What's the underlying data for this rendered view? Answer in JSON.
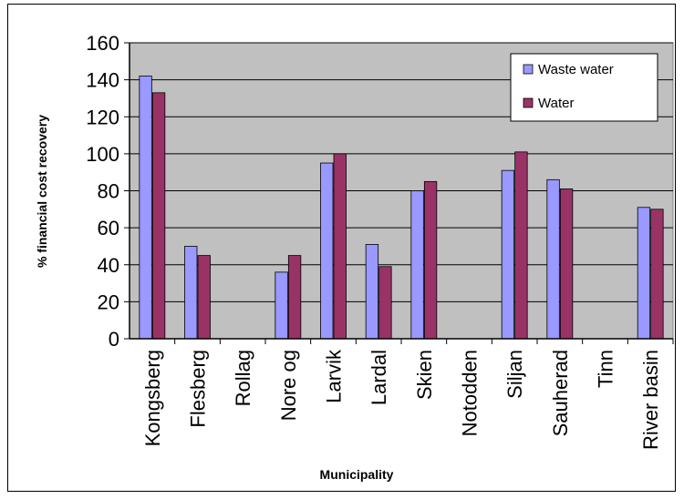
{
  "chart_data": {
    "type": "bar",
    "title": "",
    "xlabel": "Municipality",
    "ylabel": "% financial cost recovery",
    "ylim": [
      0,
      160
    ],
    "ytick_step": 20,
    "grid": true,
    "legend_position": "top-right",
    "categories": [
      "Kongsberg",
      "Flesberg",
      "Rollag",
      "Nore og",
      "Larvik",
      "Lardal",
      "Skien",
      "Notodden",
      "Siljan",
      "Sauherad",
      "Tinn",
      "River basin"
    ],
    "series": [
      {
        "name": "Waste water",
        "color": "#9999ff",
        "values": [
          142,
          50,
          null,
          36,
          95,
          51,
          80,
          null,
          91,
          86,
          null,
          71
        ]
      },
      {
        "name": "Water",
        "color": "#993366",
        "values": [
          133,
          45,
          null,
          45,
          100,
          39,
          85,
          null,
          101,
          81,
          null,
          70
        ]
      }
    ],
    "colors": {
      "plot_background": "#c0c0c0",
      "gridline": "#000000"
    }
  }
}
